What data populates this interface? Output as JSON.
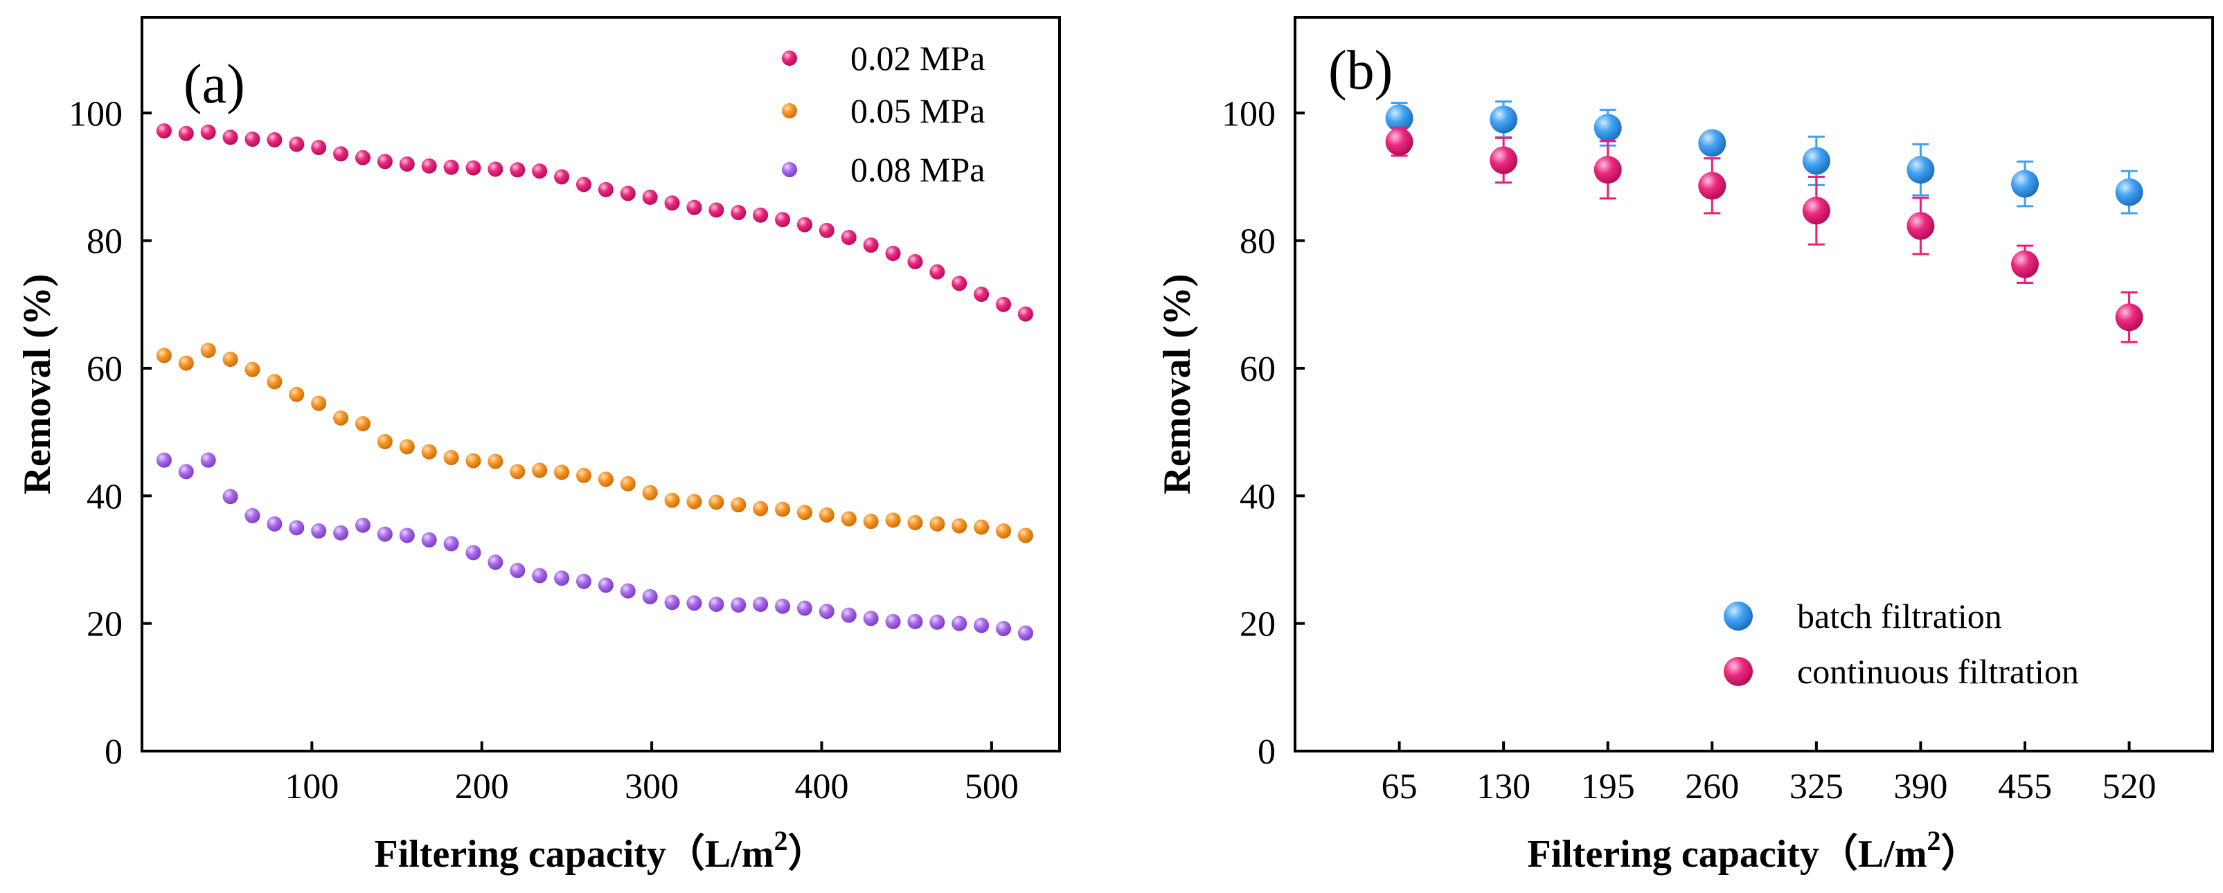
{
  "colors": {
    "pink": "#e91e74",
    "orange": "#f7941d",
    "purple": "#a865ea",
    "blue": "#3fa0f2",
    "axis": "#000000"
  },
  "chart_data": [
    {
      "type": "scatter",
      "panel_label": "(a)",
      "title": "",
      "xlabel_main": "Filtering capacity（L/m",
      "xlabel_sup": "2",
      "xlabel_end": "）",
      "ylabel": "Removal (%)",
      "xlim": [
        0,
        540
      ],
      "ylim": [
        0,
        115
      ],
      "xticks": [
        100,
        200,
        300,
        400,
        500
      ],
      "yticks": [
        0,
        20,
        40,
        60,
        80,
        100
      ],
      "legend_position": "top-right",
      "x": [
        13,
        26,
        39,
        52,
        65,
        78,
        91,
        104,
        117,
        130,
        143,
        156,
        169,
        182,
        195,
        208,
        221,
        234,
        247,
        260,
        273,
        286,
        299,
        312,
        325,
        338,
        351,
        364,
        377,
        390,
        403,
        416,
        429,
        442,
        455,
        468,
        481,
        494,
        507,
        520
      ],
      "series": [
        {
          "name": "0.02 MPa",
          "color_key": "pink",
          "values": [
            97.2,
            96.8,
            97.0,
            96.2,
            95.9,
            95.8,
            95.1,
            94.6,
            93.6,
            93.0,
            92.4,
            92.0,
            91.7,
            91.5,
            91.4,
            91.2,
            91.1,
            90.9,
            90.0,
            88.8,
            88.0,
            87.4,
            86.8,
            85.9,
            85.2,
            84.8,
            84.4,
            84.0,
            83.3,
            82.5,
            81.6,
            80.5,
            79.3,
            78.0,
            76.7,
            75.1,
            73.3,
            71.6,
            70.0,
            68.5
          ]
        },
        {
          "name": "0.05 MPa",
          "color_key": "orange",
          "values": [
            62.0,
            60.8,
            62.8,
            61.4,
            59.8,
            57.9,
            55.9,
            54.5,
            52.2,
            51.3,
            48.5,
            47.7,
            46.9,
            46.0,
            45.5,
            45.4,
            43.8,
            44.0,
            43.7,
            43.2,
            42.6,
            41.9,
            40.5,
            39.3,
            39.1,
            39.0,
            38.6,
            38.0,
            37.9,
            37.4,
            37.0,
            36.4,
            36.0,
            36.2,
            35.8,
            35.6,
            35.3,
            35.1,
            34.5,
            33.8
          ]
        },
        {
          "name": "0.08 MPa",
          "color_key": "purple",
          "values": [
            45.6,
            43.8,
            45.6,
            39.9,
            36.9,
            35.6,
            35.0,
            34.5,
            34.2,
            35.4,
            34.0,
            33.8,
            33.1,
            32.5,
            31.1,
            29.6,
            28.3,
            27.5,
            27.1,
            26.6,
            26.0,
            25.1,
            24.2,
            23.3,
            23.2,
            23.0,
            22.9,
            23.0,
            22.7,
            22.4,
            21.9,
            21.3,
            20.8,
            20.3,
            20.3,
            20.2,
            20.0,
            19.7,
            19.2,
            18.5
          ]
        }
      ]
    },
    {
      "type": "scatter",
      "panel_label": "(b)",
      "title": "",
      "xlabel_main": "Filtering capacity（L/m",
      "xlabel_sup": "2",
      "xlabel_end": "）",
      "ylabel": "Removal (%)",
      "xlim": [
        0,
        572
      ],
      "ylim": [
        0,
        115
      ],
      "xticks": [
        65,
        130,
        195,
        260,
        325,
        390,
        455,
        520
      ],
      "yticks": [
        0,
        20,
        40,
        60,
        80,
        100
      ],
      "legend_position": "bottom-right",
      "x": [
        65,
        130,
        195,
        260,
        325,
        390,
        455,
        520
      ],
      "series": [
        {
          "name": "batch filtration",
          "color_key": "blue",
          "values": [
            99.2,
            99.0,
            97.7,
            95.3,
            92.5,
            91.1,
            88.9,
            87.6
          ],
          "errors": [
            2.4,
            2.8,
            2.8,
            1.6,
            3.8,
            4.0,
            3.5,
            3.3
          ]
        },
        {
          "name": "continuous filtration",
          "color_key": "pink",
          "values": [
            95.5,
            92.6,
            91.1,
            88.6,
            84.7,
            82.3,
            76.3,
            68.0
          ],
          "errors": [
            2.2,
            3.5,
            4.5,
            4.3,
            5.3,
            4.4,
            2.9,
            3.9
          ]
        }
      ]
    }
  ]
}
